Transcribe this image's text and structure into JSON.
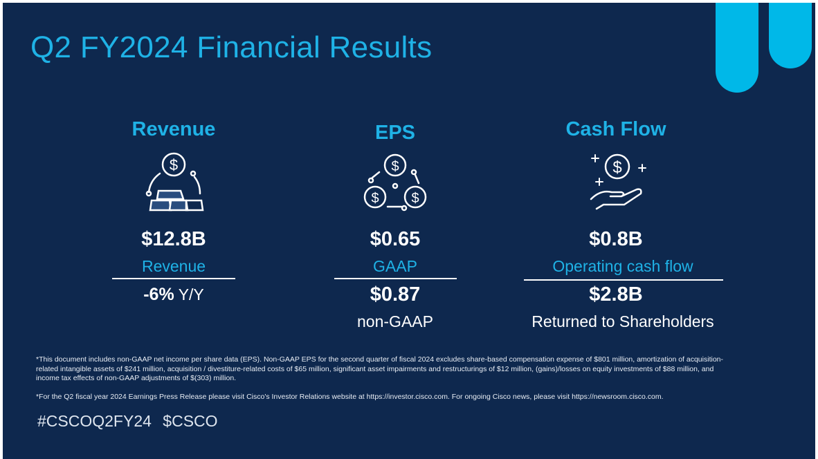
{
  "title": "Q2 FY2024 Financial Results",
  "colors": {
    "background": "#0e284e",
    "accent": "#1fb2e6",
    "pill": "#00b8e8"
  },
  "columns": [
    {
      "heading": "Revenue",
      "icon": "gold-bars-coin-icon",
      "value": "$12.8B",
      "sublabel": "Revenue",
      "second_value": "-6%",
      "second_label": "Y/Y"
    },
    {
      "heading": "EPS",
      "icon": "coins-cycle-icon",
      "value": "$0.65",
      "sublabel": "GAAP",
      "second_value": "$0.87",
      "second_label": "non-GAAP"
    },
    {
      "heading": "Cash Flow",
      "icon": "hand-coin-sparkle-icon",
      "value": "$0.8B",
      "sublabel": "Operating cash flow",
      "second_value": "$2.8B",
      "second_label": "Returned to Shareholders"
    }
  ],
  "footnotes": [
    "*This document includes non-GAAP net income per share data (EPS). Non-GAAP EPS for the second quarter of fiscal 2024 excludes share-based compensation expense of $801 million, amortization of acquisition-related intangible assets of $241 million, acquisition / divestiture-related costs of $65 million, significant asset impairments and restructurings of $12 million, (gains)/losses on equity investments of $88 million, and income tax effects of non-GAAP adjustments of $(303) million.",
    "*For the Q2 fiscal year 2024 Earnings Press Release please visit Cisco's Investor Relations website at https://investor.cisco.com. For ongoing Cisco news, please visit https://newsroom.cisco.com."
  ],
  "hashtags": "#CSCOQ2FY24  $CSCO"
}
